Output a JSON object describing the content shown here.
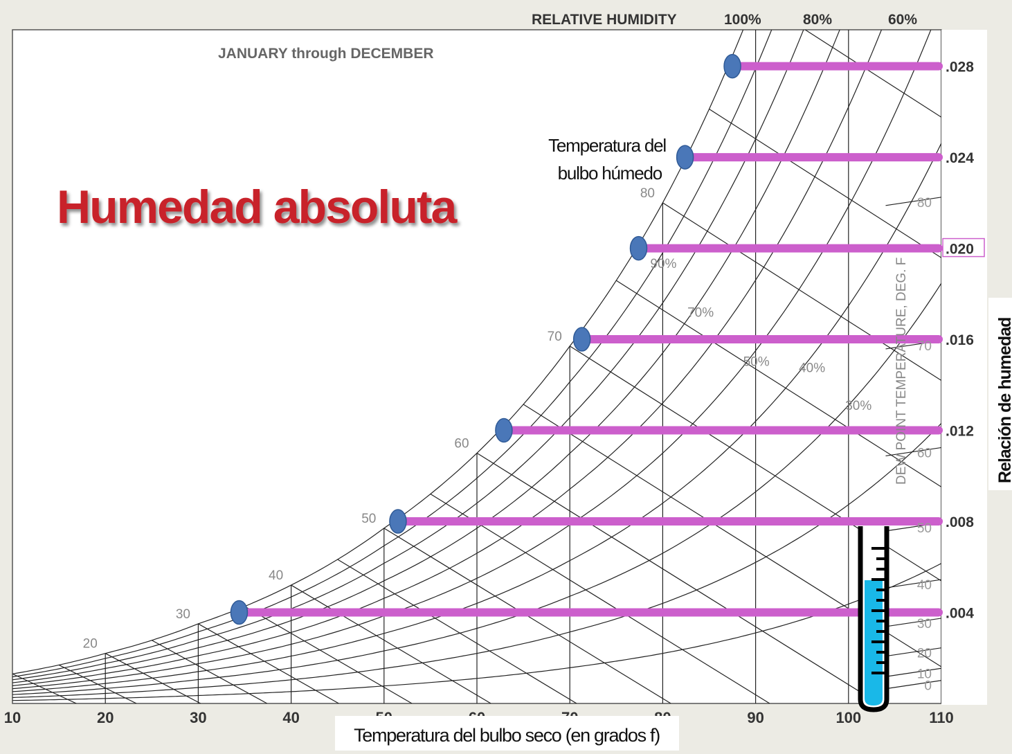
{
  "chart_data": {
    "type": "line",
    "title": "Humedad absoluta",
    "subtitle": "JANUARY through DECEMBER",
    "top_label": "RELATIVE HUMIDITY",
    "top_rh_ticks": [
      "100%",
      "80%",
      "60%"
    ],
    "xlabel": "Temperatura del bulbo seco (en grados f)",
    "ylabel": "Relación de humedad",
    "dew_point_label": "DEW POINT TEMPERATURE, DEG. F",
    "wet_bulb_callout": [
      "Temperatura del",
      "bulbo húmedo"
    ],
    "x_ticks": [
      "10",
      "20",
      "30",
      "40",
      "50",
      "60",
      "70",
      "80",
      "90",
      "100",
      "110"
    ],
    "xlim": [
      10,
      110
    ],
    "y_ticks": [
      ".004",
      ".008",
      ".012",
      ".016",
      ".020",
      ".024",
      ".028"
    ],
    "ylim": [
      0,
      0.0296
    ],
    "saturation_curve": {
      "x": [
        10,
        20,
        30,
        40,
        50,
        60,
        70,
        80,
        90
      ],
      "y": [
        0.0013,
        0.0022,
        0.0035,
        0.0052,
        0.0077,
        0.011,
        0.0157,
        0.022,
        0.031
      ]
    },
    "wet_bulb_labels": [
      "20",
      "30",
      "40",
      "50",
      "60",
      "70",
      "80"
    ],
    "rh_curve_labels": [
      "90%",
      "70%",
      "50%",
      "40%",
      "30%"
    ],
    "dew_point_ticks": [
      "0",
      "10",
      "20",
      "30",
      "40",
      "50",
      "60",
      "70",
      "80"
    ],
    "absolute_humidity_lines": {
      "x_start": [
        34.4,
        51.5,
        62.9,
        71.3,
        77.4,
        82.4,
        87.5
      ],
      "y": [
        0.004,
        0.008,
        0.012,
        0.016,
        0.02,
        0.024,
        0.028
      ]
    },
    "colors": {
      "highlight_line": "#cc5fcc",
      "marker_fill": "#4a77b8",
      "title_red": "#c8232b",
      "thermometer_fill": "#19b8e8",
      "grid": "#222222"
    },
    "icons": [
      "thermometer-icon"
    ]
  }
}
